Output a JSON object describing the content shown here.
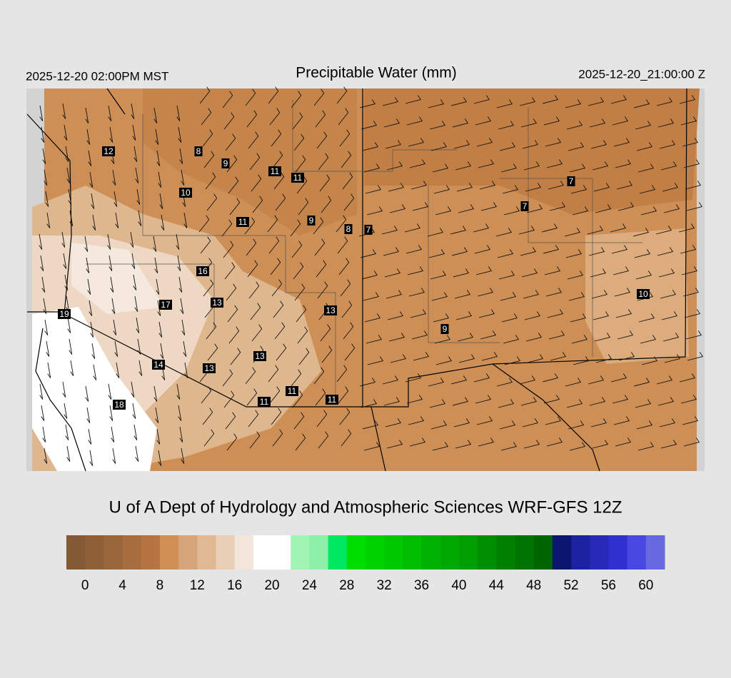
{
  "header": {
    "left": "2025-12-20 02:00PM MST",
    "title": "Precipitable Water (mm)",
    "right": "2025-12-20_21:00:00 Z"
  },
  "stations": [
    12,
    8,
    9,
    11,
    11,
    10,
    11,
    9,
    8,
    7,
    7,
    7,
    16,
    17,
    13,
    19,
    13,
    10,
    9,
    13,
    14,
    13,
    11,
    11,
    11,
    18
  ],
  "footer": "U of A Dept of Hydrology and Atmospheric Sciences WRF-GFS 12Z",
  "colorbar": {
    "lim": [
      -2,
      62
    ],
    "ticks": [
      0,
      4,
      8,
      12,
      16,
      20,
      24,
      28,
      32,
      36,
      40,
      44,
      48,
      52,
      56,
      60
    ],
    "colors": [
      "#845a34",
      "#8f6038",
      "#9a663b",
      "#a86d3e",
      "#b57441",
      "#cf8f55",
      "#d6a57a",
      "#e0b994",
      "#e9cfb6",
      "#f2e5da",
      "#ffffff",
      "#ffffff",
      "#a0f5b4",
      "#8cf0a8",
      "#00e860",
      "#00dd00",
      "#00d200",
      "#00c800",
      "#00bd00",
      "#00b200",
      "#00a800",
      "#009e00",
      "#008f00",
      "#008000",
      "#007400",
      "#006400",
      "#0c1670",
      "#1c22a0",
      "#2828b8",
      "#3030d0",
      "#4848e0",
      "#6868e0"
    ]
  }
}
